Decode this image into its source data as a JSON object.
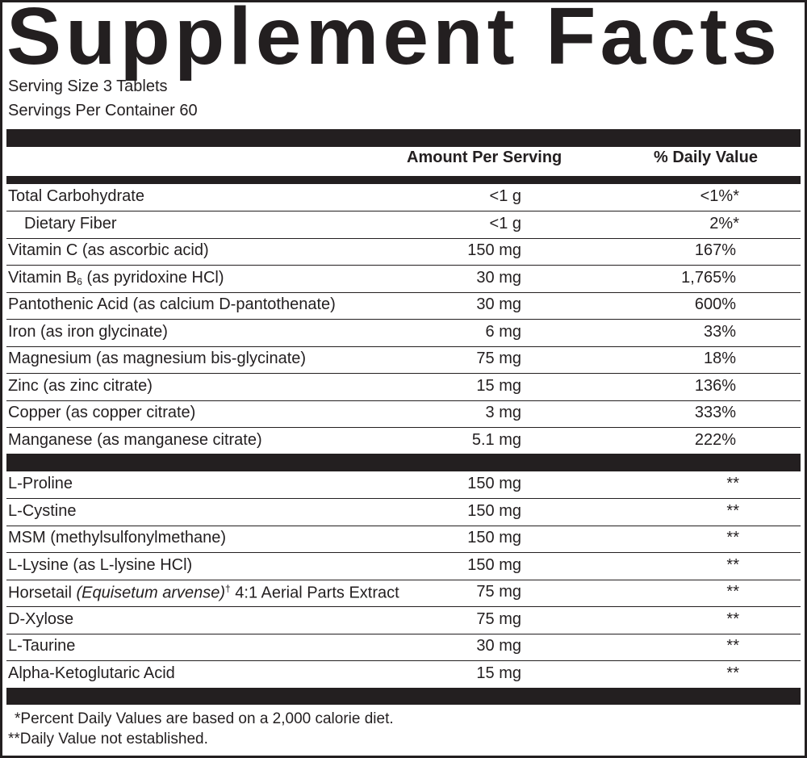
{
  "title": "Supplement Facts",
  "serving_size": "Serving Size  3 Tablets",
  "servings_per_container": "Servings Per Container 60",
  "headers": {
    "amount": "Amount Per Serving",
    "dv": "% Daily Value"
  },
  "group1": [
    {
      "name": "Total Carbohydrate",
      "amount": "<1 g",
      "dv": "<1%*"
    },
    {
      "name": "Dietary Fiber",
      "amount": "<1 g",
      "dv": "2%*"
    },
    {
      "name": "Vitamin C (as ascorbic acid)",
      "amount": "150 mg",
      "dv": "167%"
    },
    {
      "name_a": "Vitamin B",
      "name_sub": "6",
      "name_b": " (as pyridoxine HCl)",
      "amount": "30 mg",
      "dv": "1,765%"
    },
    {
      "name": "Pantothenic Acid (as calcium D-pantothenate)",
      "amount": "30 mg",
      "dv": "600%"
    },
    {
      "name": "Iron (as iron glycinate)",
      "amount": "6 mg",
      "dv": "33%"
    },
    {
      "name": "Magnesium (as magnesium bis-glycinate)",
      "amount": "75 mg",
      "dv": "18%"
    },
    {
      "name": "Zinc (as zinc citrate)",
      "amount": "15 mg",
      "dv": "136%"
    },
    {
      "name": "Copper (as copper citrate)",
      "amount": "3 mg",
      "dv": "333%"
    },
    {
      "name": "Manganese (as manganese citrate)",
      "amount": "5.1 mg",
      "dv": "222%"
    }
  ],
  "group2": [
    {
      "name": "L-Proline",
      "amount": "150 mg",
      "dv": "**"
    },
    {
      "name": "L-Cystine",
      "amount": "150 mg",
      "dv": "**"
    },
    {
      "name": "MSM (methylsulfonylmethane)",
      "amount": "150 mg",
      "dv": "**"
    },
    {
      "name": "L-Lysine (as L-lysine HCl)",
      "amount": "150 mg",
      "dv": "**"
    },
    {
      "name_a": "Horsetail ",
      "name_i": "(Equisetum arvense)",
      "name_sup": "†",
      "name_b": " 4:1 Aerial Parts Extract",
      "amount": "75 mg",
      "dv": "**"
    },
    {
      "name": "D-Xylose",
      "amount": "75 mg",
      "dv": "**"
    },
    {
      "name": "L-Taurine",
      "amount": "30 mg",
      "dv": "**"
    },
    {
      "name": "Alpha-Ketoglutaric Acid",
      "amount": "15 mg",
      "dv": "**"
    }
  ],
  "footnotes": [
    "*Percent Daily Values are based on a 2,000 calorie diet.",
    "**Daily Value not established."
  ]
}
